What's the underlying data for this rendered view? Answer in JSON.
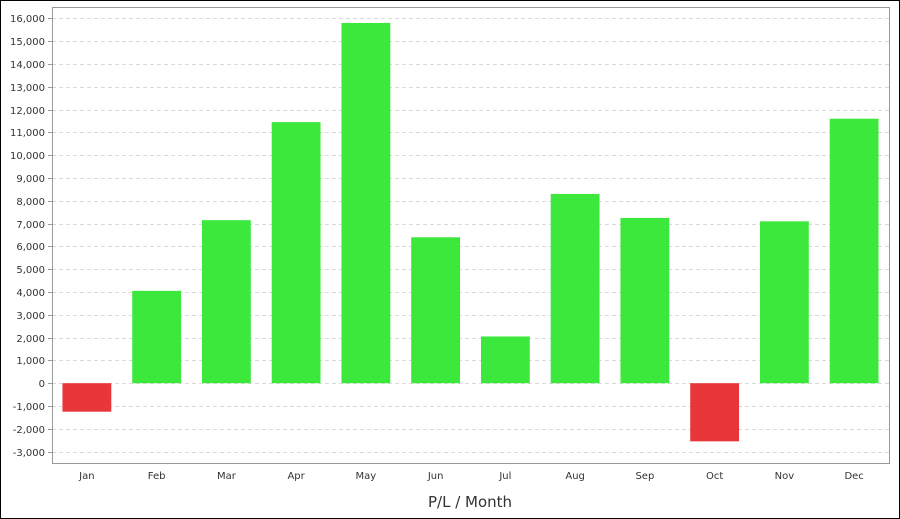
{
  "chart_data": {
    "type": "bar",
    "title": "",
    "xlabel": "P/L / Month",
    "ylabel": "",
    "categories": [
      "Jan",
      "Feb",
      "Mar",
      "Apr",
      "May",
      "Jun",
      "Jul",
      "Aug",
      "Sep",
      "Oct",
      "Nov",
      "Dec"
    ],
    "values": [
      -1250,
      4050,
      7150,
      11450,
      15800,
      6400,
      2050,
      8300,
      7250,
      -2550,
      7100,
      11600
    ],
    "ylim": [
      -3500,
      16500
    ],
    "yticks": [
      -3000,
      -2000,
      -1000,
      0,
      1000,
      2000,
      3000,
      4000,
      5000,
      6000,
      7000,
      8000,
      9000,
      10000,
      11000,
      12000,
      13000,
      14000,
      15000,
      16000
    ],
    "ytick_labels": [
      "-3,000",
      "-2,000",
      "-1,000",
      "0",
      "1,000",
      "2,000",
      "3,000",
      "4,000",
      "5,000",
      "6,000",
      "7,000",
      "8,000",
      "9,000",
      "10,000",
      "11,000",
      "12,000",
      "13,000",
      "14,000",
      "15,000",
      "16,000"
    ],
    "grid": true,
    "legend": "none",
    "colors": {
      "positive": "#3DE83D",
      "negative": "#E8363B",
      "grid": "#D9D9D9",
      "axis": "#999999"
    }
  }
}
